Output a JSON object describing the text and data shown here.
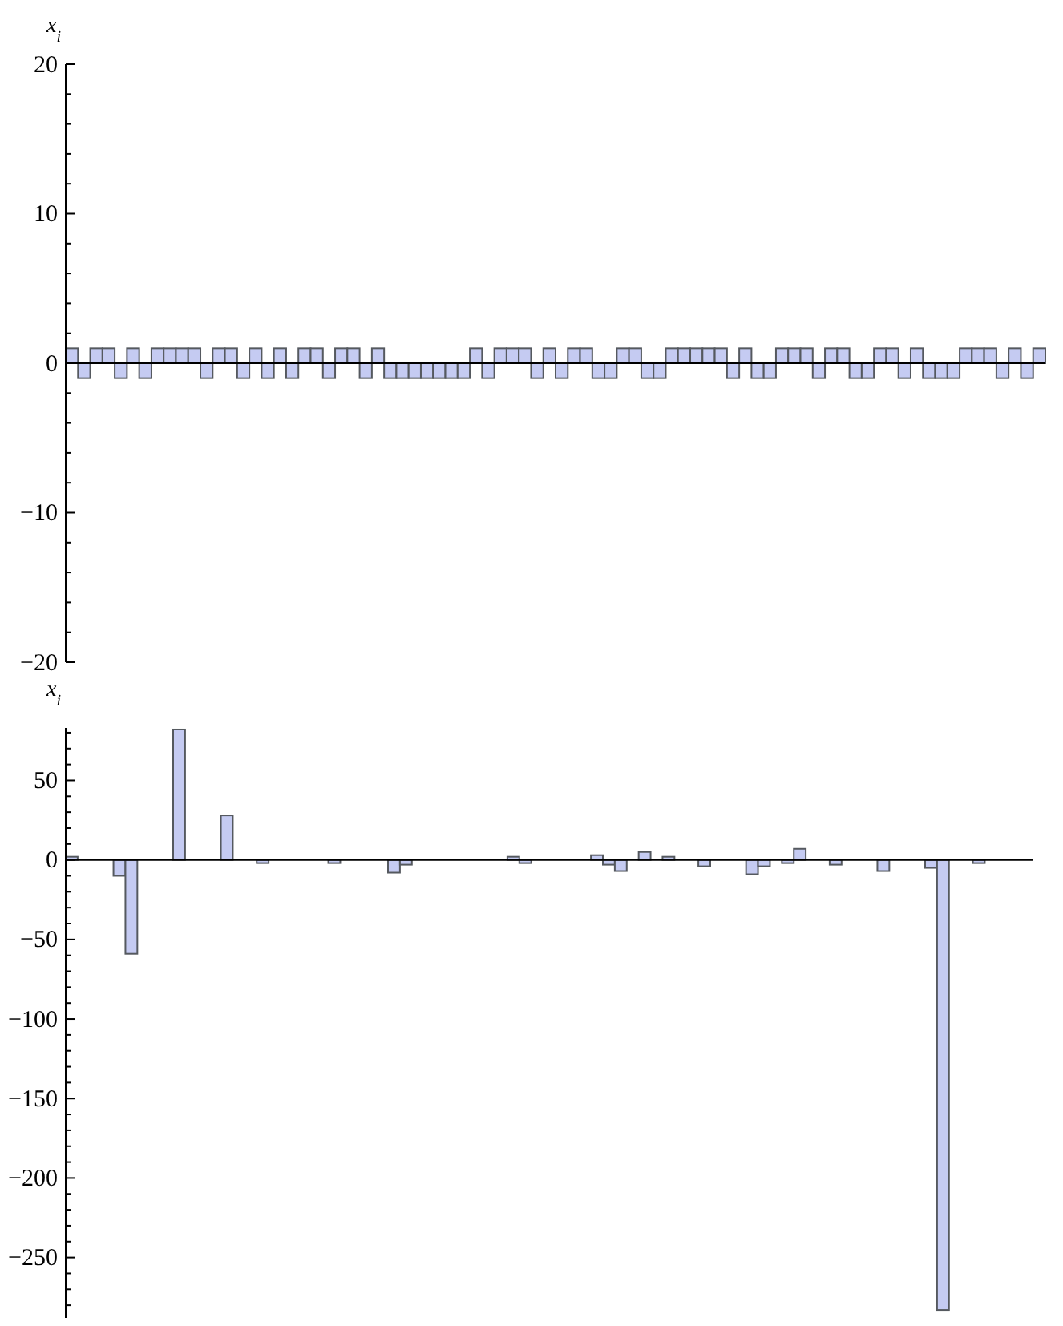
{
  "chart_data": [
    {
      "type": "bar",
      "ylabel": "x$_{i}$",
      "categories": [
        null,
        null,
        null,
        null,
        null,
        null,
        null,
        null,
        null,
        null,
        null,
        null,
        null,
        null,
        null,
        null,
        null,
        null,
        null,
        null,
        null,
        null,
        null,
        null,
        null,
        null,
        null,
        null,
        null,
        null,
        null,
        null,
        null,
        null,
        null,
        null,
        null,
        null,
        null,
        null,
        null,
        null,
        null,
        null,
        null,
        null,
        null,
        null,
        null,
        null,
        null,
        null,
        null,
        null,
        null,
        null,
        null,
        null,
        null,
        null,
        null,
        null,
        null,
        null,
        null,
        null,
        null,
        null,
        null,
        null,
        null,
        null,
        null,
        null,
        null,
        null,
        null,
        null,
        null,
        null
      ],
      "values": [
        1,
        -1,
        1,
        1,
        -1,
        1,
        -1,
        1,
        1,
        1,
        1,
        -1,
        1,
        1,
        -1,
        1,
        -1,
        1,
        -1,
        1,
        1,
        -1,
        1,
        1,
        -1,
        1,
        -1,
        -1,
        -1,
        -1,
        -1,
        -1,
        -1,
        1,
        -1,
        1,
        1,
        1,
        -1,
        1,
        -1,
        1,
        1,
        -1,
        -1,
        1,
        1,
        -1,
        -1,
        1,
        1,
        1,
        1,
        1,
        -1,
        1,
        -1,
        -1,
        1,
        1,
        1,
        -1,
        1,
        1,
        -1,
        -1,
        1,
        1,
        -1,
        1,
        -1,
        -1,
        -1,
        1,
        1,
        1,
        -1,
        1,
        -1,
        1
      ],
      "color": "#c5cbf2",
      "ylim": [
        -20,
        20
      ],
      "yticks": [
        {
          "value": -20,
          "label": "−20"
        },
        {
          "value": -18,
          "label": null
        },
        {
          "value": -16,
          "label": null
        },
        {
          "value": -14,
          "label": null
        },
        {
          "value": -12,
          "label": null
        },
        {
          "value": -10,
          "label": "−10"
        },
        {
          "value": -8,
          "label": null
        },
        {
          "value": -6,
          "label": null
        },
        {
          "value": -4,
          "label": null
        },
        {
          "value": -2,
          "label": null
        },
        0,
        {
          "value": 2,
          "label": null
        },
        {
          "value": 4,
          "label": null
        },
        {
          "value": 6,
          "label": null
        },
        {
          "value": 8,
          "label": null
        },
        10,
        {
          "value": 12,
          "label": null
        },
        {
          "value": 14,
          "label": null
        },
        {
          "value": 16,
          "label": null
        },
        {
          "value": 18,
          "label": null
        },
        20
      ],
      "tick_labels": "y"
    },
    {
      "type": "bar",
      "ylabel": "x$_{i}$",
      "categories": [
        null,
        null,
        null,
        null,
        null,
        null,
        null,
        null,
        null,
        null,
        null,
        null,
        null,
        null,
        null,
        null,
        null,
        null,
        null,
        null,
        null,
        null,
        null,
        null,
        null,
        null,
        null,
        null,
        null,
        null,
        null,
        null,
        null,
        null,
        null,
        null,
        null,
        null,
        null,
        null,
        null,
        null,
        null,
        null,
        null,
        null,
        null,
        null,
        null,
        null,
        null,
        null,
        null,
        null,
        null,
        null,
        null,
        null,
        null,
        null,
        null,
        null,
        null,
        null,
        null,
        null,
        null,
        null,
        null,
        null,
        null,
        null,
        null,
        null,
        null,
        null,
        null,
        null,
        null,
        null,
        null
      ],
      "values": [
        2,
        null,
        0,
        0,
        -10,
        -59,
        null,
        0,
        0,
        82,
        0,
        0,
        null,
        28,
        null,
        0,
        -2,
        0,
        0,
        null,
        0,
        0,
        -2,
        0,
        0,
        0,
        null,
        -8,
        -3,
        null,
        null,
        0,
        null,
        0,
        0,
        0,
        0,
        2,
        -2,
        0,
        null,
        0,
        0,
        0,
        3,
        -3,
        -7,
        0,
        5,
        0,
        2,
        0,
        null,
        -4,
        0,
        null,
        0,
        -9,
        -4,
        null,
        -2,
        7,
        0,
        null,
        -3,
        0,
        0,
        0,
        -7,
        0,
        0,
        null,
        -5,
        -283,
        null,
        null,
        -2,
        null,
        0,
        0,
        0
      ],
      "color": "#c5cbf2",
      "ylim": [
        -288,
        83
      ],
      "yticks": [
        {
          "value": -280,
          "label": null
        },
        {
          "value": -270,
          "label": null
        },
        {
          "value": -260,
          "label": null
        },
        {
          "value": -250,
          "label": "−250"
        },
        {
          "value": -240,
          "label": null
        },
        {
          "value": -230,
          "label": null
        },
        {
          "value": -220,
          "label": null
        },
        {
          "value": -210,
          "label": null
        },
        {
          "value": -200,
          "label": "−200"
        },
        {
          "value": -190,
          "label": null
        },
        {
          "value": -180,
          "label": null
        },
        {
          "value": -170,
          "label": null
        },
        {
          "value": -160,
          "label": null
        },
        {
          "value": -150,
          "label": "−150"
        },
        {
          "value": -140,
          "label": null
        },
        {
          "value": -130,
          "label": null
        },
        {
          "value": -120,
          "label": null
        },
        {
          "value": -110,
          "label": null
        },
        {
          "value": -100,
          "label": "−100"
        },
        {
          "value": -90,
          "label": null
        },
        {
          "value": -80,
          "label": null
        },
        {
          "value": -70,
          "label": null
        },
        {
          "value": -60,
          "label": null
        },
        {
          "value": -50,
          "label": "−50"
        },
        {
          "value": -40,
          "label": null
        },
        {
          "value": -30,
          "label": null
        },
        {
          "value": -20,
          "label": null
        },
        {
          "value": -10,
          "label": null
        },
        0,
        {
          "value": 10,
          "label": null
        },
        {
          "value": 20,
          "label": null
        },
        {
          "value": 30,
          "label": null
        },
        {
          "value": 40,
          "label": null
        },
        50,
        {
          "value": 60,
          "label": null
        },
        {
          "value": 70,
          "label": null
        },
        {
          "value": 80,
          "label": null
        }
      ],
      "tick_labels": "y"
    }
  ]
}
